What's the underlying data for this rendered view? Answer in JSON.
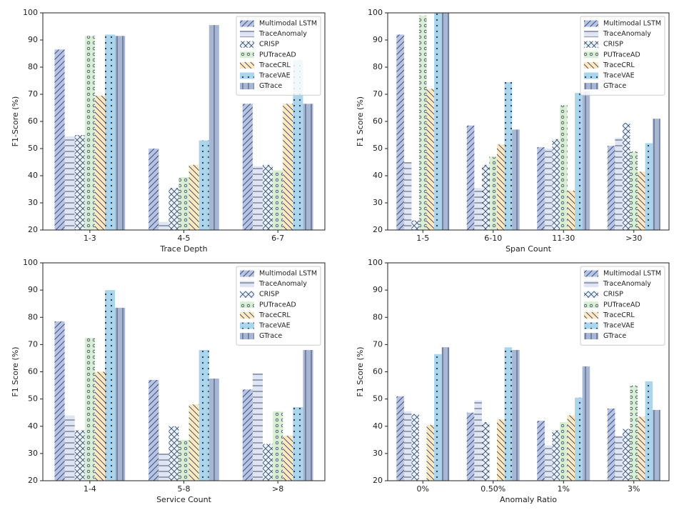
{
  "chart_data": [
    {
      "type": "bar",
      "xlabel": "Trace Depth",
      "ylabel": "F1-Score (%)",
      "categories": [
        "1-3",
        "4-5",
        "6-7"
      ],
      "ylim": [
        20,
        100
      ],
      "yticks": [
        20,
        30,
        40,
        50,
        60,
        70,
        80,
        90,
        100
      ],
      "legend": "upper right",
      "series": [
        {
          "name": "Multimodal LSTM",
          "color": "#b4c3e6",
          "hatch": "//",
          "values": [
            86.5,
            50,
            66.5
          ]
        },
        {
          "name": "TraceAnomaly",
          "color": "#dfe5f3",
          "hatch": "-",
          "values": [
            54.5,
            23,
            43.5
          ]
        },
        {
          "name": "CRISP",
          "color": "#e6f3f8",
          "hatch": "x",
          "values": [
            55,
            35.5,
            44
          ]
        },
        {
          "name": "PUTraceAD",
          "color": "#d8efd3",
          "hatch": "o",
          "values": [
            91.5,
            39.5,
            42
          ]
        },
        {
          "name": "TraceCRL",
          "color": "#fde9c0",
          "hatch": "\\",
          "values": [
            69.5,
            44,
            66.5
          ]
        },
        {
          "name": "TraceVAE",
          "color": "#a9d6ec",
          "hatch": ".",
          "values": [
            92,
            53,
            82.5
          ]
        },
        {
          "name": "GTrace",
          "color": "#a6b6d3",
          "hatch": "|",
          "values": [
            91.5,
            95.5,
            66.5
          ]
        }
      ]
    },
    {
      "type": "bar",
      "xlabel": "Span Count",
      "ylabel": "F1 Score (%)",
      "categories": [
        "1-5",
        "6-10",
        "11-30",
        ">30"
      ],
      "ylim": [
        20,
        100
      ],
      "yticks": [
        20,
        30,
        40,
        50,
        60,
        70,
        80,
        90,
        100
      ],
      "legend": "upper right",
      "series": [
        {
          "name": "Multimodal LSTM",
          "color": "#b4c3e6",
          "hatch": "//",
          "values": [
            92,
            58.5,
            50.5,
            51
          ]
        },
        {
          "name": "TraceAnomaly",
          "color": "#dfe5f3",
          "hatch": "-",
          "values": [
            45,
            35.5,
            50,
            54
          ]
        },
        {
          "name": "CRISP",
          "color": "#e6f3f8",
          "hatch": "x",
          "values": [
            23.5,
            44,
            53.5,
            59.5
          ]
        },
        {
          "name": "PUTraceAD",
          "color": "#d8efd3",
          "hatch": "o",
          "values": [
            99,
            47,
            66,
            49
          ]
        },
        {
          "name": "TraceCRL",
          "color": "#fde9c0",
          "hatch": "\\",
          "values": [
            72,
            51.5,
            34.5,
            41.5
          ]
        },
        {
          "name": "TraceVAE",
          "color": "#a9d6ec",
          "hatch": ".",
          "values": [
            100,
            74.5,
            70.5,
            52
          ]
        },
        {
          "name": "GTrace",
          "color": "#a6b6d3",
          "hatch": "|",
          "values": [
            100,
            57,
            71,
            61
          ]
        }
      ]
    },
    {
      "type": "bar",
      "xlabel": "Service Count",
      "ylabel": "F1 Score (%)",
      "categories": [
        "1-4",
        "5-8",
        ">8"
      ],
      "ylim": [
        20,
        100
      ],
      "yticks": [
        20,
        30,
        40,
        50,
        60,
        70,
        80,
        90,
        100
      ],
      "legend": "upper right",
      "series": [
        {
          "name": "Multimodal LSTM",
          "color": "#b4c3e6",
          "hatch": "//",
          "values": [
            78.5,
            57,
            53.5
          ]
        },
        {
          "name": "TraceAnomaly",
          "color": "#dfe5f3",
          "hatch": "-",
          "values": [
            44,
            30,
            59.5
          ]
        },
        {
          "name": "CRISP",
          "color": "#e6f3f8",
          "hatch": "x",
          "values": [
            38.5,
            40,
            33.5
          ]
        },
        {
          "name": "PUTraceAD",
          "color": "#d8efd3",
          "hatch": "o",
          "values": [
            72.5,
            35,
            45.5
          ]
        },
        {
          "name": "TraceCRL",
          "color": "#fde9c0",
          "hatch": "\\",
          "values": [
            60,
            48,
            36.5
          ]
        },
        {
          "name": "TraceVAE",
          "color": "#a9d6ec",
          "hatch": ".",
          "values": [
            90,
            68,
            47
          ]
        },
        {
          "name": "GTrace",
          "color": "#a6b6d3",
          "hatch": "|",
          "values": [
            83.5,
            57.5,
            68
          ]
        }
      ]
    },
    {
      "type": "bar",
      "xlabel": "Anomaly Ratio",
      "ylabel": "F1 Score (%)",
      "categories": [
        "0%",
        "0.50%",
        "1%",
        "3%"
      ],
      "ylim": [
        20,
        100
      ],
      "yticks": [
        20,
        30,
        40,
        50,
        60,
        70,
        80,
        90,
        100
      ],
      "legend": "upper right",
      "series": [
        {
          "name": "Multimodal LSTM",
          "color": "#b4c3e6",
          "hatch": "//",
          "values": [
            51,
            45,
            42,
            46.5
          ]
        },
        {
          "name": "TraceAnomaly",
          "color": "#dfe5f3",
          "hatch": "-",
          "values": [
            45.5,
            49.5,
            33,
            36.5
          ]
        },
        {
          "name": "CRISP",
          "color": "#e6f3f8",
          "hatch": "x",
          "values": [
            44.5,
            41.5,
            38.5,
            39
          ]
        },
        {
          "name": "PUTraceAD",
          "color": "#d8efd3",
          "hatch": "o",
          "values": [
            20,
            20,
            41.5,
            55
          ]
        },
        {
          "name": "TraceCRL",
          "color": "#fde9c0",
          "hatch": "\\",
          "values": [
            40.5,
            42.5,
            44,
            43.5
          ]
        },
        {
          "name": "TraceVAE",
          "color": "#a9d6ec",
          "hatch": ".",
          "values": [
            66.5,
            69,
            50.5,
            56.5
          ]
        },
        {
          "name": "GTrace",
          "color": "#a6b6d3",
          "hatch": "|",
          "values": [
            69,
            68,
            62,
            46
          ]
        }
      ]
    }
  ]
}
